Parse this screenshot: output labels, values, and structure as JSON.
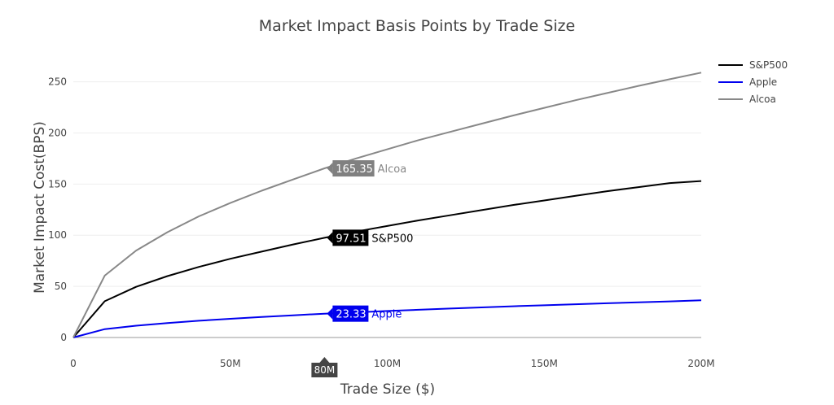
{
  "chart_data": {
    "type": "line",
    "title": "Market Impact Basis Points by Trade Size",
    "xlabel": "Trade Size ($)",
    "ylabel": "Market Impact Cost(BPS)",
    "xlim": [
      0,
      200
    ],
    "ylim": [
      0,
      260
    ],
    "x_ticks": [
      {
        "value": 0,
        "label": "0"
      },
      {
        "value": 50,
        "label": "50M"
      },
      {
        "value": 100,
        "label": "100M"
      },
      {
        "value": 150,
        "label": "150M"
      },
      {
        "value": 200,
        "label": "200M"
      }
    ],
    "y_ticks": [
      0,
      50,
      100,
      150,
      200,
      250
    ],
    "grid": true,
    "legend_position": "top-right",
    "x": [
      0,
      10,
      20,
      30,
      40,
      50,
      60,
      70,
      80,
      90,
      100,
      110,
      120,
      130,
      140,
      150,
      160,
      170,
      180,
      190,
      200
    ],
    "series": [
      {
        "name": "S&P500",
        "color": "#000000",
        "values": [
          0,
          35.5,
          49.5,
          60,
          69,
          77,
          84,
          91,
          97.5,
          103.5,
          109,
          114.5,
          119.5,
          124.5,
          129.5,
          134,
          138.5,
          143,
          147,
          151,
          153
        ]
      },
      {
        "name": "Apple",
        "color": "#0000ee",
        "values": [
          0,
          8.2,
          11.5,
          14.1,
          16.4,
          18.3,
          20,
          21.7,
          23.3,
          24.6,
          25.9,
          27.1,
          28.3,
          29.4,
          30.5,
          31.5,
          32.5,
          33.5,
          34.4,
          35.3,
          36.3
        ]
      },
      {
        "name": "Alcoa",
        "color": "#888888",
        "values": [
          0,
          60.5,
          85,
          103,
          118.5,
          131.5,
          143.5,
          154.5,
          165.35,
          175,
          184,
          193,
          201,
          209,
          217,
          224.5,
          232,
          239,
          246,
          252.5,
          259
        ]
      }
    ],
    "hover": {
      "x_label": "80M",
      "labels": [
        {
          "series": "Alcoa",
          "value": "165.35",
          "name": "Alcoa",
          "y": 165.35,
          "bg": "#808080",
          "name_color": "#888888"
        },
        {
          "series": "S&P500",
          "value": "97.51",
          "name": "S&P500",
          "y": 97.51,
          "bg": "#000000",
          "name_color": "#000000"
        },
        {
          "series": "Apple",
          "value": "23.33",
          "name": "Apple",
          "y": 23.33,
          "bg": "#0000ee",
          "name_color": "#0000ee"
        }
      ]
    }
  }
}
